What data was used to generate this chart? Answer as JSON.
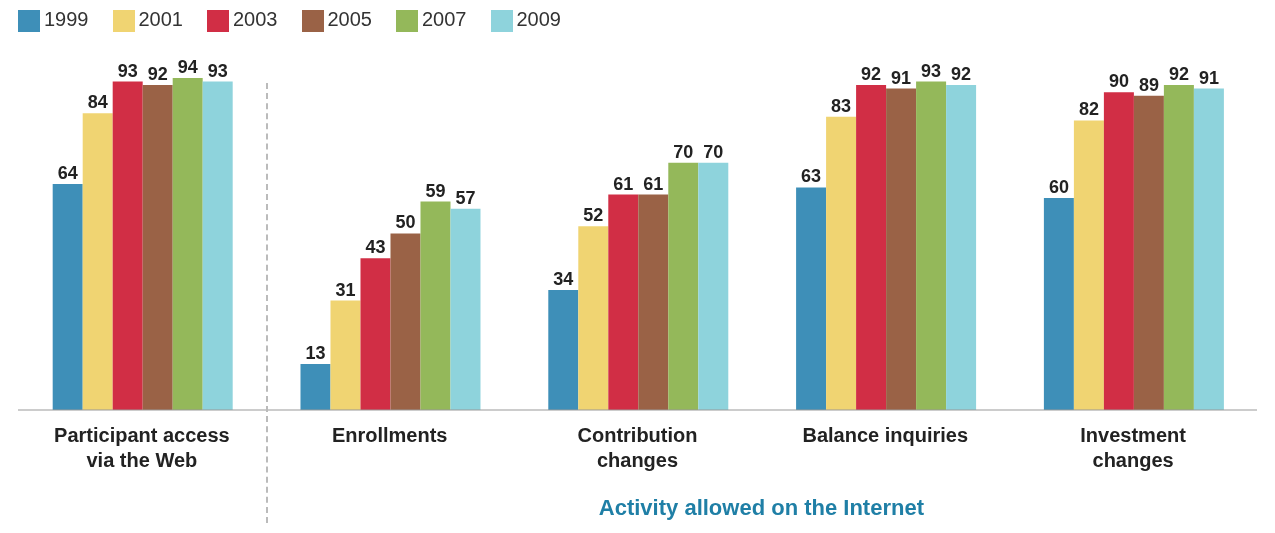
{
  "chart_data": {
    "type": "bar",
    "xlabel": "Activity allowed on the Internet",
    "categories": [
      "Participant access via the Web",
      "Enrollments",
      "Contribution changes",
      "Balance inquiries",
      "Investment changes"
    ],
    "series": [
      {
        "name": "1999",
        "color": "#3e8fb8",
        "values": [
          64,
          13,
          34,
          63,
          60
        ]
      },
      {
        "name": "2001",
        "color": "#f0d472",
        "values": [
          84,
          31,
          52,
          83,
          82
        ]
      },
      {
        "name": "2003",
        "color": "#d12e45",
        "values": [
          93,
          43,
          61,
          92,
          90
        ]
      },
      {
        "name": "2005",
        "color": "#9a6246",
        "values": [
          92,
          50,
          61,
          91,
          89
        ]
      },
      {
        "name": "2007",
        "color": "#94b85a",
        "values": [
          94,
          59,
          70,
          93,
          92
        ]
      },
      {
        "name": "2009",
        "color": "#8ed3dc",
        "values": [
          93,
          57,
          70,
          92,
          91
        ]
      }
    ],
    "data_labels": true,
    "legend": "top left",
    "grid": false
  }
}
